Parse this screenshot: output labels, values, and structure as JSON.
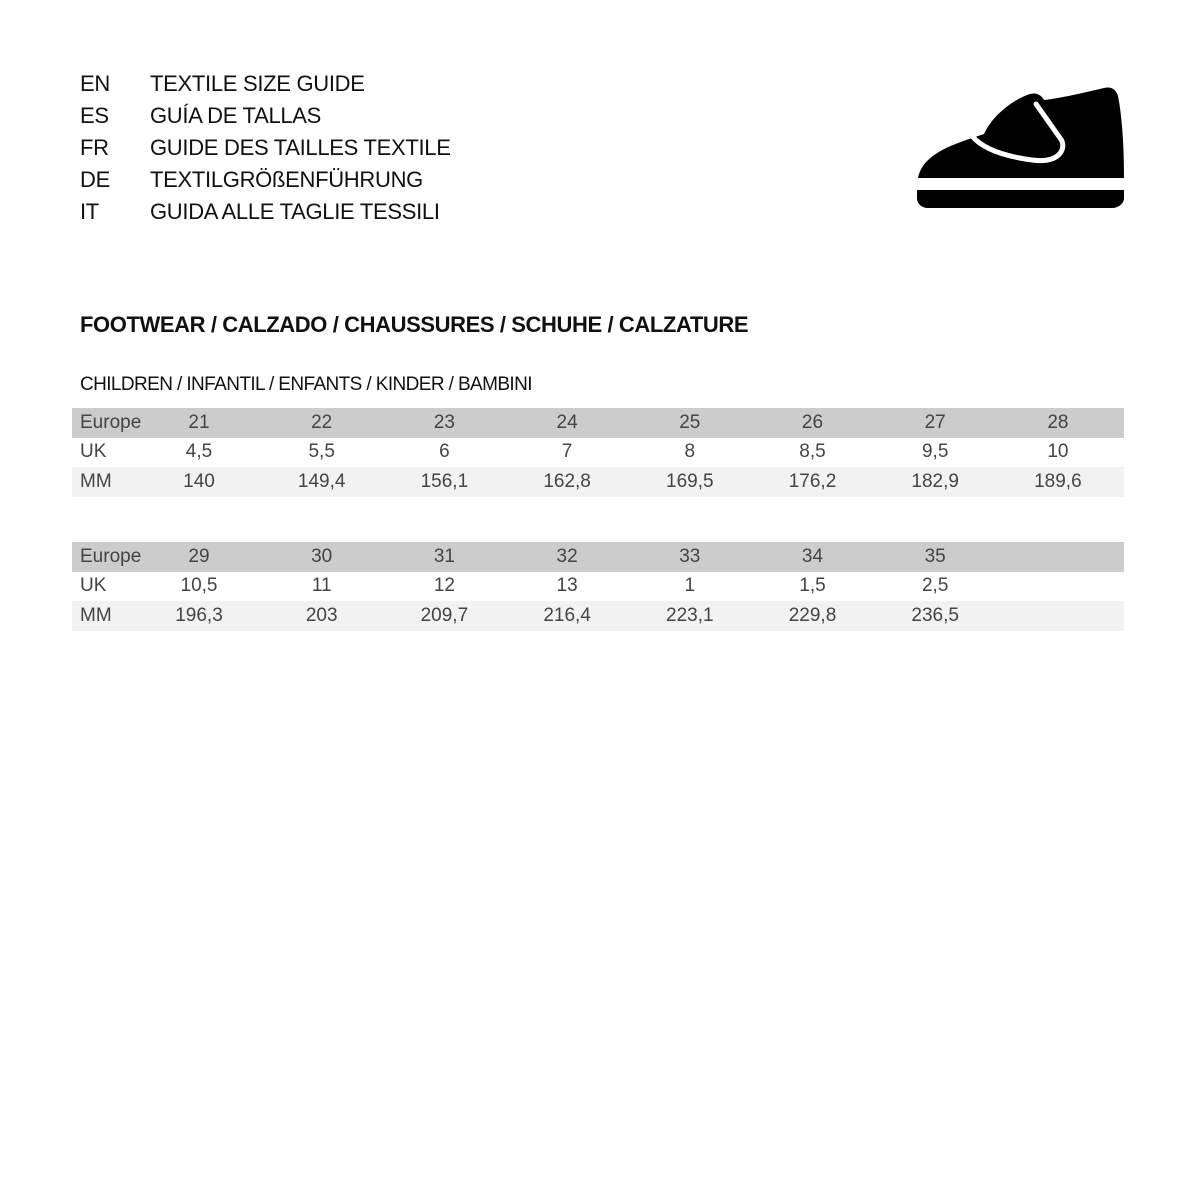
{
  "header": {
    "languages": [
      {
        "code": "EN",
        "label": "TEXTILE SIZE GUIDE"
      },
      {
        "code": "ES",
        "label": "GUÍA DE TALLAS"
      },
      {
        "code": "FR",
        "label": "GUIDE DES TAILLES TEXTILE"
      },
      {
        "code": "DE",
        "label": "TEXTILGRÖßENFÜHRUNG"
      },
      {
        "code": "IT",
        "label": "GUIDA ALLE TAGLIE TESSILI"
      }
    ],
    "icon": "children-shoe-icon"
  },
  "section": {
    "title": "FOOTWEAR / CALZADO / CHAUSSURES / SCHUHE / CALZATURE",
    "subtitle": "CHILDREN / INFANTIL / ENFANTS / KINDER / BAMBINI"
  },
  "tables": [
    {
      "rows": [
        {
          "label": "Europe",
          "values": [
            "21",
            "22",
            "23",
            "24",
            "25",
            "26",
            "27",
            "28"
          ]
        },
        {
          "label": "UK",
          "values": [
            "4,5",
            "5,5",
            "6",
            "7",
            "8",
            "8,5",
            "9,5",
            "10"
          ]
        },
        {
          "label": "MM",
          "values": [
            "140",
            "149,4",
            "156,1",
            "162,8",
            "169,5",
            "176,2",
            "182,9",
            "189,6"
          ]
        }
      ]
    },
    {
      "rows": [
        {
          "label": "Europe",
          "values": [
            "29",
            "30",
            "31",
            "32",
            "33",
            "34",
            "35"
          ]
        },
        {
          "label": "UK",
          "values": [
            "10,5",
            "11",
            "12",
            "13",
            "1",
            "1,5",
            "2,5"
          ]
        },
        {
          "label": "MM",
          "values": [
            "196,3",
            "203",
            "209,7",
            "216,4",
            "223,1",
            "229,8",
            "236,5"
          ]
        }
      ]
    }
  ],
  "colors": {
    "header_row": "#cccccc",
    "alt_row": "#f2f2f2"
  }
}
